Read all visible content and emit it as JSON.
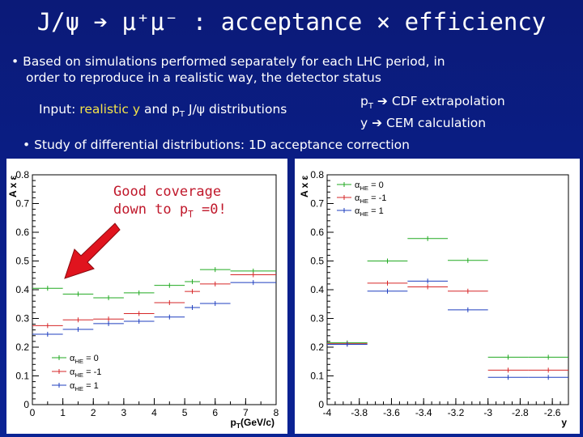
{
  "slide": {
    "title": "J/ψ ➔ μ⁺μ⁻ : acceptance × efficiency",
    "bullet1_line1": "• Based on simulations performed separately for each LHC period, in",
    "bullet1_line2": "order to reproduce in a realistic way, the detector status",
    "input_prefix": "Input: ",
    "input_highlight": "realistic y",
    "input_suffix": " and p",
    "input_sub": "T",
    "input_tail": " J/ψ distributions",
    "note_pt": "p",
    "note_pt_sub": "T",
    "note_pt_tail": " ➔ CDF extrapolation",
    "note_y": "y  ➔ CEM calculation",
    "bullet2": "• Study of differential distributions: 1D acceptance correction",
    "annotation_line1": "Good coverage",
    "annotation_line2": "down to p",
    "annotation_sub": "T",
    "annotation_tail": " =0!",
    "colors": {
      "background": "#0b1f8a",
      "annotation": "#c0182b",
      "arrow": "#e0141e"
    }
  },
  "chart_data": [
    {
      "type": "scatter",
      "title": "",
      "xlabel": "p_T(GeV/c)",
      "ylabel": "A x ε",
      "xlim": [
        0,
        8
      ],
      "ylim": [
        0,
        0.8
      ],
      "x_ticks": [
        "0",
        "1",
        "2",
        "3",
        "4",
        "5",
        "6",
        "7",
        "8"
      ],
      "y_ticks": [
        "0",
        "0.1",
        "0.2",
        "0.3",
        "0.4",
        "0.5",
        "0.6",
        "0.7",
        "0.8"
      ],
      "bin_edges": [
        0,
        1,
        2,
        3,
        4,
        5,
        5.5,
        6.5,
        8
      ],
      "legend_position": "bottom-left",
      "series": [
        {
          "name": "α_HE = 0",
          "color": "#22aa22",
          "values": [
            0.405,
            0.385,
            0.372,
            0.389,
            0.415,
            0.428,
            0.47,
            0.465
          ]
        },
        {
          "name": "α_HE = -1",
          "color": "#d62728",
          "values": [
            0.275,
            0.295,
            0.298,
            0.317,
            0.355,
            0.394,
            0.42,
            0.452
          ]
        },
        {
          "name": "α_HE = 1",
          "color": "#1f3fbf",
          "values": [
            0.245,
            0.262,
            0.282,
            0.29,
            0.305,
            0.338,
            0.352,
            0.425
          ]
        }
      ]
    },
    {
      "type": "scatter",
      "title": "",
      "xlabel": "y",
      "ylabel": "A x ε",
      "xlim": [
        -4,
        -2.5
      ],
      "ylim": [
        0,
        0.8
      ],
      "x_ticks": [
        "-4",
        "-3.8",
        "-3.6",
        "-3.4",
        "-3.2",
        "-3",
        "-2.8",
        "-2.6"
      ],
      "y_ticks": [
        "0",
        "0.1",
        "0.2",
        "0.3",
        "0.4",
        "0.5",
        "0.6",
        "0.7",
        "0.8"
      ],
      "bin_edges": [
        -4,
        -3.75,
        -3.5,
        -3.25,
        -3.0,
        -2.75,
        -2.5
      ],
      "legend_position": "top-left",
      "series": [
        {
          "name": "α_HE = 0",
          "color": "#22aa22",
          "values": [
            0.215,
            0.5,
            0.578,
            0.502,
            0.165,
            0.165
          ]
        },
        {
          "name": "α_HE = -1",
          "color": "#d62728",
          "values": [
            0.212,
            0.423,
            0.41,
            0.395,
            0.12,
            0.12
          ]
        },
        {
          "name": "α_HE = 1",
          "color": "#1f3fbf",
          "values": [
            0.21,
            0.395,
            0.43,
            0.33,
            0.095,
            0.095
          ]
        }
      ]
    }
  ]
}
